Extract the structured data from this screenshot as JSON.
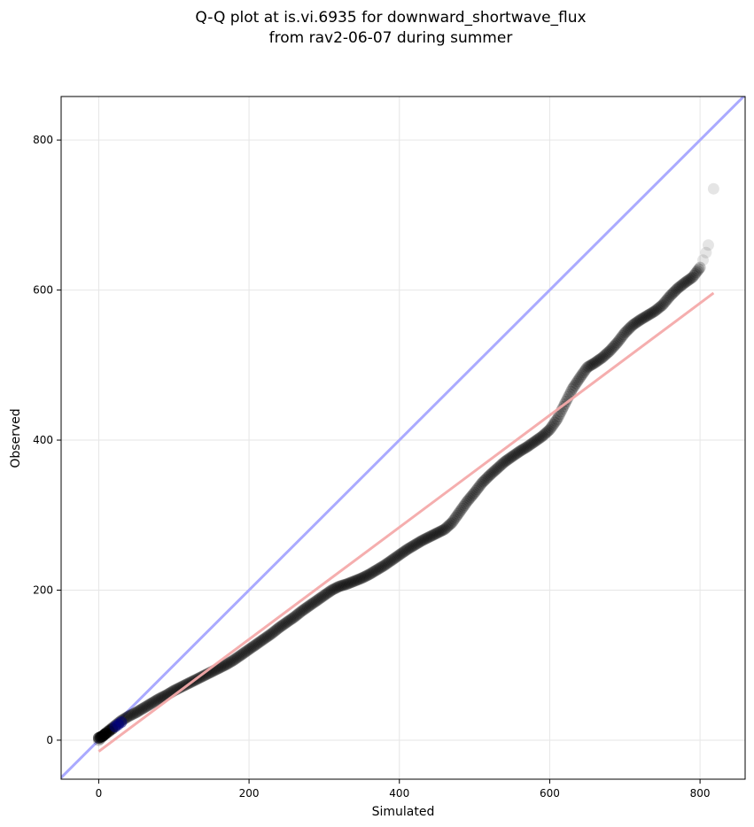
{
  "chart_data": {
    "type": "scatter",
    "title_lines": [
      "Q-Q plot at is.vi.6935 for downward_shortwave_flux",
      "from rav2-06-07 during summer"
    ],
    "xlabel": "Simulated",
    "ylabel": "Observed",
    "xlim": [
      -50,
      860
    ],
    "ylim": [
      -52,
      858
    ],
    "xticks": [
      0,
      200,
      400,
      600,
      800
    ],
    "yticks": [
      0,
      200,
      400,
      600,
      800
    ],
    "grid": true,
    "colors": {
      "points": "#000000",
      "identity_line": "#aaaaff",
      "fit_line": "#f4aaaa",
      "low_points": "#000080"
    },
    "identity_line": {
      "x": [
        -50,
        860
      ],
      "y": [
        -50,
        860
      ]
    },
    "fit_line": {
      "x": [
        0,
        818
      ],
      "y": [
        -15,
        596
      ]
    },
    "quantile_curve": {
      "x": [
        0,
        10,
        20,
        30,
        40,
        50,
        60,
        70,
        80,
        90,
        100,
        110,
        120,
        130,
        140,
        150,
        160,
        170,
        180,
        190,
        200,
        210,
        220,
        230,
        240,
        250,
        260,
        270,
        280,
        290,
        300,
        310,
        320,
        330,
        340,
        350,
        360,
        370,
        380,
        390,
        400,
        410,
        420,
        430,
        440,
        450,
        460,
        470,
        480,
        490,
        500,
        510,
        520,
        530,
        540,
        550,
        560,
        570,
        580,
        590,
        600,
        610,
        620,
        630,
        640,
        650,
        660,
        670,
        680,
        690,
        700,
        710,
        720,
        730,
        740,
        750,
        760,
        770,
        780,
        790,
        800
      ],
      "y": [
        0,
        10,
        18,
        26,
        32,
        37,
        43,
        49,
        55,
        60,
        66,
        71,
        76,
        81,
        86,
        91,
        96,
        101,
        107,
        114,
        121,
        128,
        135,
        142,
        150,
        157,
        164,
        172,
        179,
        186,
        193,
        200,
        205,
        208,
        212,
        216,
        221,
        227,
        233,
        240,
        247,
        254,
        260,
        266,
        271,
        276,
        281,
        290,
        304,
        318,
        330,
        343,
        353,
        362,
        371,
        378,
        385,
        391,
        398,
        405,
        414,
        428,
        448,
        468,
        483,
        497,
        503,
        510,
        519,
        530,
        543,
        553,
        560,
        566,
        572,
        580,
        592,
        602,
        610,
        617,
        630
      ]
    },
    "low_end_points": {
      "x": [
        0,
        2,
        4,
        6,
        8,
        10,
        14,
        18,
        22,
        26,
        30
      ],
      "y": [
        3,
        4,
        5,
        6,
        8,
        9,
        12,
        15,
        18,
        21,
        24
      ]
    },
    "tail_points": {
      "x": [
        804,
        808,
        811,
        818
      ],
      "y": [
        640,
        650,
        660,
        735
      ]
    }
  }
}
